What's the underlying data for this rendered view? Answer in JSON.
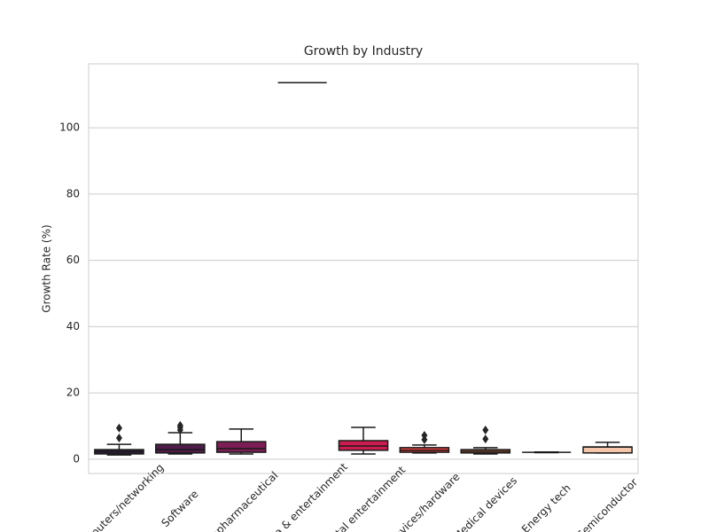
{
  "chart_data": {
    "type": "box",
    "title": "Growth by Industry",
    "y_label": "Growth Rate (%)",
    "categories": [
      "Computers/networking",
      "Software",
      "Biopharmaceutical",
      "Media & entertainment",
      "Digital entertainment",
      "Devices/hardware",
      "Medical devices",
      "Energy tech",
      "Semiconductor"
    ],
    "colors": [
      "#2e1e3b",
      "#4e1d4b",
      "#7c1d54",
      "#a11a5b",
      "#cb1b4f",
      "#e8443f",
      "#e0703f",
      "#f6a47c",
      "#f6c6ab"
    ],
    "boxes": [
      {
        "min": 1.3,
        "q1": 1.6,
        "median": 2.3,
        "q3": 2.9,
        "max": 4.5,
        "outliers": [
          9.4,
          6.4
        ]
      },
      {
        "min": 1.6,
        "q1": 1.9,
        "median": 2.9,
        "q3": 4.5,
        "max": 8.0,
        "outliers": [
          10.2,
          9.6,
          8.8
        ]
      },
      {
        "min": 1.6,
        "q1": 2.1,
        "median": 3.2,
        "q3": 5.3,
        "max": 9.1,
        "outliers": []
      },
      {
        "min": 113.6,
        "q1": 113.6,
        "median": 113.6,
        "q3": 113.6,
        "max": 113.6,
        "outliers": []
      },
      {
        "min": 1.6,
        "q1": 2.7,
        "median": 4.0,
        "q3": 5.6,
        "max": 9.6,
        "outliers": []
      },
      {
        "min": 1.9,
        "q1": 2.1,
        "median": 2.7,
        "q3": 3.5,
        "max": 4.3,
        "outliers": [
          7.2,
          5.9
        ]
      },
      {
        "min": 1.6,
        "q1": 1.9,
        "median": 2.4,
        "q3": 2.9,
        "max": 3.5,
        "outliers": [
          8.8,
          6.1
        ]
      },
      {
        "min": 2.0,
        "q1": 2.1,
        "median": 2.1,
        "q3": 2.1,
        "max": 2.2,
        "outliers": []
      },
      {
        "min": 1.9,
        "q1": 1.9,
        "median": 3.7,
        "q3": 3.7,
        "max": 5.1,
        "outliers": []
      }
    ],
    "ylim": [
      -4.3,
      119.3
    ],
    "yticks": [
      0,
      20,
      40,
      60,
      80,
      100
    ],
    "grid": true
  }
}
